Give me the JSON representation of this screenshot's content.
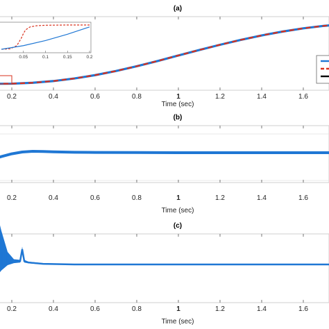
{
  "chart_data": [
    {
      "panel": "(a)",
      "type": "line",
      "title": "(a)",
      "xlabel": "Time (sec)",
      "ylabel": "",
      "xlim": [
        0.0,
        1.82
      ],
      "grid": false,
      "x_ticks": [
        "0.2",
        "0.4",
        "0.6",
        "0.8",
        "1",
        "1.2",
        "1.4",
        "1.6"
      ],
      "series": [
        {
          "style": "solid",
          "color": "#1f77d4",
          "x": [
            0.0,
            0.2,
            0.3,
            0.4,
            0.5,
            0.6,
            0.7,
            0.8,
            0.9,
            1.0,
            1.1,
            1.2,
            1.3,
            1.4,
            1.5,
            1.6,
            1.7,
            1.8
          ],
          "y": [
            0.0,
            0.005,
            0.02,
            0.048,
            0.09,
            0.145,
            0.212,
            0.29,
            0.376,
            0.467,
            0.556,
            0.642,
            0.722,
            0.795,
            0.858,
            0.911,
            0.952,
            0.982
          ]
        },
        {
          "style": "dashed",
          "color": "#d9301c",
          "x": [
            0.0,
            0.2,
            0.3,
            0.4,
            0.5,
            0.6,
            0.7,
            0.8,
            0.9,
            1.0,
            1.1,
            1.2,
            1.3,
            1.4,
            1.5,
            1.6,
            1.7,
            1.8
          ],
          "y": [
            0.0,
            0.005,
            0.02,
            0.048,
            0.09,
            0.145,
            0.212,
            0.29,
            0.376,
            0.467,
            0.556,
            0.642,
            0.722,
            0.795,
            0.858,
            0.911,
            0.952,
            0.982
          ]
        }
      ],
      "legend_entries": [
        {
          "color": "#1f77d4",
          "style": "solid"
        },
        {
          "color": "#d9301c",
          "style": "dashed"
        },
        {
          "color": "#000000",
          "style": "solid"
        }
      ],
      "legend_placement": "right",
      "inset": {
        "xlim": [
          0.0,
          0.2
        ],
        "x_ticks": [
          "0.05",
          "0.1",
          "0.15",
          "0.2"
        ],
        "series": [
          {
            "style": "dashed",
            "color": "#d9301c",
            "x": [
              0.0,
              0.02,
              0.035,
              0.045,
              0.05,
              0.055,
              0.065,
              0.08,
              0.1,
              0.15,
              0.2
            ],
            "y": [
              0.0,
              0.02,
              0.15,
              0.45,
              0.65,
              0.8,
              0.92,
              0.97,
              0.99,
              1.0,
              1.0
            ]
          },
          {
            "style": "solid",
            "color": "#1f77d4",
            "x": [
              0.0,
              0.05,
              0.1,
              0.15,
              0.2
            ],
            "y": [
              0.0,
              0.15,
              0.36,
              0.62,
              0.92
            ]
          }
        ]
      }
    },
    {
      "panel": "(b)",
      "type": "line",
      "title": "(b)",
      "xlabel": "Time (sec)",
      "xlim": [
        0.0,
        1.82
      ],
      "x_ticks": [
        "0.2",
        "0.4",
        "0.6",
        "0.8",
        "1",
        "1.2",
        "1.4",
        "1.6"
      ],
      "series": [
        {
          "style": "solid",
          "color": "#1f77d4",
          "x": [
            0.0,
            0.05,
            0.1,
            0.15,
            0.2,
            0.25,
            0.3,
            0.35,
            0.4,
            0.5,
            0.6,
            0.8,
            1.0,
            1.2,
            1.4,
            1.6,
            1.82
          ],
          "y": [
            0.0,
            0.18,
            0.4,
            0.62,
            0.82,
            0.95,
            1.0,
            0.99,
            0.96,
            0.93,
            0.92,
            0.91,
            0.9,
            0.9,
            0.9,
            0.9,
            0.9
          ]
        }
      ]
    },
    {
      "panel": "(c)",
      "type": "line",
      "title": "(c)",
      "xlabel": "Time (sec)",
      "xlim": [
        0.0,
        1.82
      ],
      "x_ticks": [
        "0.2",
        "0.4",
        "0.6",
        "0.8",
        "1",
        "1.2",
        "1.4",
        "1.6"
      ],
      "series": [
        {
          "style": "solid",
          "color": "#1f77d4",
          "x": [
            0.0,
            0.03,
            0.06,
            0.09,
            0.12,
            0.15,
            0.18,
            0.21,
            0.24,
            0.25,
            0.26,
            0.28,
            0.35,
            0.5,
            0.8,
            1.0,
            1.3,
            1.6,
            1.82
          ],
          "y": [
            0.0,
            0.35,
            0.6,
            0.75,
            0.75,
            0.62,
            0.5,
            0.46,
            0.46,
            0.64,
            0.46,
            0.44,
            0.42,
            0.41,
            0.41,
            0.41,
            0.41,
            0.41,
            0.41
          ],
          "envelope": [
            0.02,
            0.92,
            0.85,
            0.7,
            0.55,
            0.3,
            0.1,
            0.03,
            0.02,
            0.04,
            0.02,
            0.012,
            0.01,
            0.008,
            0.008,
            0.008,
            0.008,
            0.008,
            0.008
          ]
        }
      ]
    }
  ]
}
